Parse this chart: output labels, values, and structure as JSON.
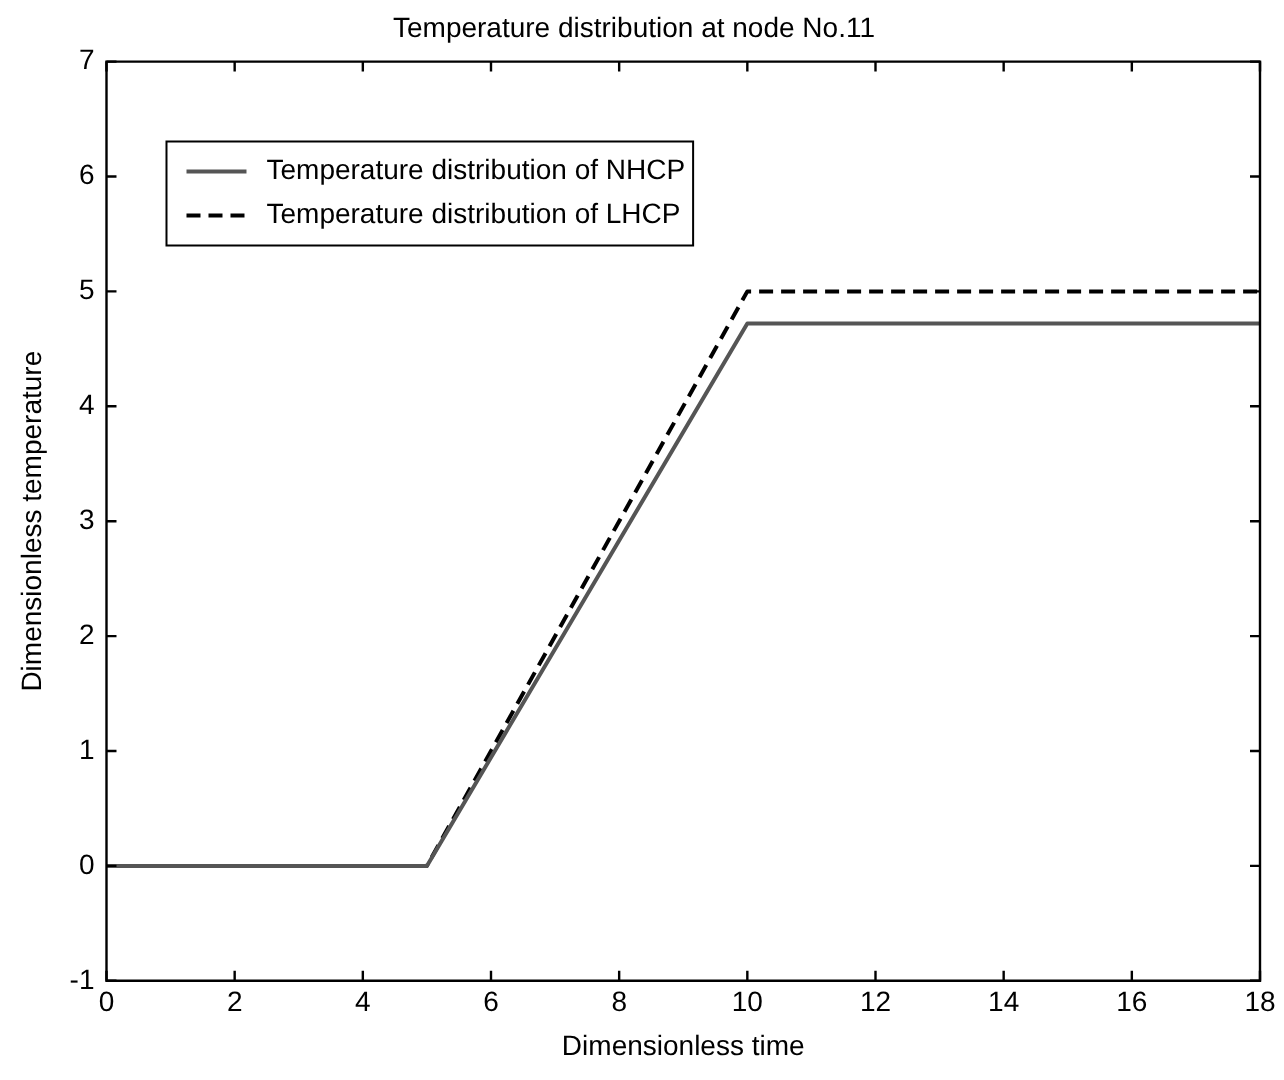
{
  "chart_data": {
    "type": "line",
    "title": "Temperature distribution at node No.11",
    "xlabel": "Dimensionless time",
    "ylabel": "Dimensionless temperature",
    "xlim": [
      0,
      18
    ],
    "xticks": [
      0,
      2,
      4,
      6,
      8,
      10,
      12,
      14,
      16,
      18
    ],
    "ylim": [
      -1,
      7
    ],
    "yticks": [
      -1,
      0,
      1,
      2,
      3,
      4,
      5,
      6,
      7
    ],
    "grid": false,
    "legend": "top left",
    "marker": "none",
    "series": [
      {
        "name": "Temperature distribution of NHCP",
        "color": "#555555",
        "line_style": "solid",
        "x": [
          0,
          5,
          10,
          18
        ],
        "values": [
          0,
          0,
          4.72,
          4.72
        ]
      },
      {
        "name": "Temperature distribution of LHCP",
        "color": "#000000",
        "line_style": "dashed",
        "x": [
          0,
          5,
          10,
          18
        ],
        "values": [
          0,
          0,
          5,
          5
        ]
      }
    ]
  }
}
